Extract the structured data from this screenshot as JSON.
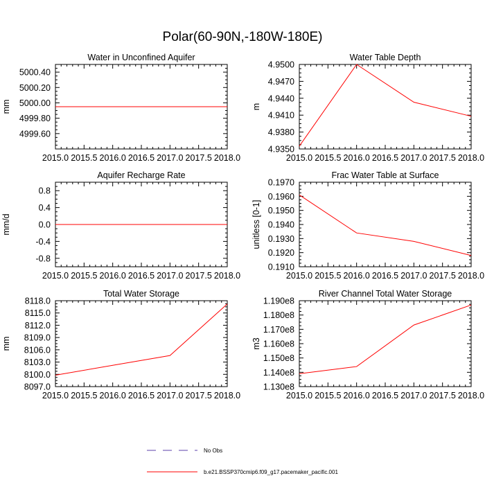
{
  "figure_title": "Polar(60-90N,-180W-180E)",
  "legend": {
    "items": [
      {
        "label": "No Obs",
        "color": "#5b3fa8",
        "style": "dashed"
      },
      {
        "label": "b.e21.BSSP370cmip6.f09_g17.pacemaker_pacific.001",
        "color": "#ff0000",
        "style": "solid"
      }
    ]
  },
  "chart_data": [
    {
      "type": "line",
      "title": "Water in Unconfined Aquifer",
      "ylabel": "mm",
      "xlabel": "",
      "xlim": [
        2015.0,
        2018.0
      ],
      "ylim": [
        4999.4,
        5000.5
      ],
      "yticks": [
        4999.6,
        4999.8,
        5000.0,
        5000.2,
        5000.4
      ],
      "ytick_labels": [
        "4999.60",
        "4999.80",
        "5000.00",
        "5000.20",
        "5000.40"
      ],
      "xticks": [
        2015.0,
        2015.5,
        2016.0,
        2016.5,
        2017.0,
        2017.5,
        2018.0
      ],
      "xtick_labels": [
        "2015.0",
        "2015.5",
        "2016.0",
        "2016.5",
        "2017.0",
        "2017.5",
        "2018.0"
      ],
      "series": [
        {
          "name": "b.e21.BSSP370cmip6.f09_g17.pacemaker_pacific.001",
          "x": [
            2015,
            2016,
            2017,
            2018
          ],
          "values": [
            4999.95,
            4999.95,
            4999.95,
            4999.95
          ]
        }
      ]
    },
    {
      "type": "line",
      "title": "Water Table Depth",
      "ylabel": "m",
      "xlabel": "",
      "xlim": [
        2015.0,
        2018.0
      ],
      "ylim": [
        4.935,
        4.95
      ],
      "yticks": [
        4.935,
        4.938,
        4.941,
        4.944,
        4.947,
        4.95
      ],
      "ytick_labels": [
        "4.9350",
        "4.9380",
        "4.9410",
        "4.9440",
        "4.9470",
        "4.9500"
      ],
      "xticks": [
        2015.0,
        2015.5,
        2016.0,
        2016.5,
        2017.0,
        2017.5,
        2018.0
      ],
      "xtick_labels": [
        "2015.0",
        "2015.5",
        "2016.0",
        "2016.5",
        "2017.0",
        "2017.5",
        "2018.0"
      ],
      "series": [
        {
          "name": "b.e21.BSSP370cmip6.f09_g17.pacemaker_pacific.001",
          "x": [
            2015,
            2016,
            2017,
            2018
          ],
          "values": [
            4.9355,
            4.95,
            4.9433,
            4.9408
          ]
        }
      ]
    },
    {
      "type": "line",
      "title": "Aquifer Recharge Rate",
      "ylabel": "mm/d",
      "xlabel": "",
      "xlim": [
        2015.0,
        2018.0
      ],
      "ylim": [
        -1.0,
        1.0
      ],
      "yticks": [
        -0.8,
        -0.4,
        0.0,
        0.4,
        0.8
      ],
      "ytick_labels": [
        "-0.8",
        "-0.4",
        "0.0",
        "0.4",
        "0.8"
      ],
      "xticks": [
        2015.0,
        2015.5,
        2016.0,
        2016.5,
        2017.0,
        2017.5,
        2018.0
      ],
      "xtick_labels": [
        "2015.0",
        "2015.5",
        "2016.0",
        "2016.5",
        "2017.0",
        "2017.5",
        "2018.0"
      ],
      "series": [
        {
          "name": "b.e21.BSSP370cmip6.f09_g17.pacemaker_pacific.001",
          "x": [
            2015,
            2016,
            2017,
            2018
          ],
          "values": [
            0.0,
            0.0,
            0.0,
            0.0
          ]
        }
      ]
    },
    {
      "type": "line",
      "title": "Frac Water Table at Surface",
      "ylabel": "unitless [0-1]",
      "xlabel": "",
      "xlim": [
        2015.0,
        2018.0
      ],
      "ylim": [
        0.191,
        0.197
      ],
      "yticks": [
        0.191,
        0.192,
        0.193,
        0.194,
        0.195,
        0.196,
        0.197
      ],
      "ytick_labels": [
        "0.1910",
        "0.1920",
        "0.1930",
        "0.1940",
        "0.1950",
        "0.1960",
        "0.1970"
      ],
      "xticks": [
        2015.0,
        2015.5,
        2016.0,
        2016.5,
        2017.0,
        2017.5,
        2018.0
      ],
      "xtick_labels": [
        "2015.0",
        "2015.5",
        "2016.0",
        "2016.5",
        "2017.0",
        "2017.5",
        "2018.0"
      ],
      "series": [
        {
          "name": "b.e21.BSSP370cmip6.f09_g17.pacemaker_pacific.001",
          "x": [
            2015,
            2016,
            2017,
            2018
          ],
          "values": [
            0.1961,
            0.1934,
            0.1928,
            0.1918
          ]
        }
      ]
    },
    {
      "type": "line",
      "title": "Total Water Storage",
      "ylabel": "mm",
      "xlabel": "",
      "xlim": [
        2015.0,
        2018.0
      ],
      "ylim": [
        8097.0,
        8118.0
      ],
      "yticks": [
        8097.0,
        8100.0,
        8103.0,
        8106.0,
        8109.0,
        8112.0,
        8115.0,
        8118.0
      ],
      "ytick_labels": [
        "8097.0",
        "8100.0",
        "8103.0",
        "8106.0",
        "8109.0",
        "8112.0",
        "8115.0",
        "8118.0"
      ],
      "xticks": [
        2015.0,
        2015.5,
        2016.0,
        2016.5,
        2017.0,
        2017.5,
        2018.0
      ],
      "xtick_labels": [
        "2015.0",
        "2015.5",
        "2016.0",
        "2016.5",
        "2017.0",
        "2017.5",
        "2018.0"
      ],
      "series": [
        {
          "name": "b.e21.BSSP370cmip6.f09_g17.pacemaker_pacific.001",
          "x": [
            2015,
            2016,
            2017,
            2018
          ],
          "values": [
            8099.8,
            8102.2,
            8104.6,
            8117.2
          ]
        }
      ]
    },
    {
      "type": "line",
      "title": "River Channel Total Water Storage",
      "ylabel": "m3",
      "xlabel": "",
      "xlim": [
        2015.0,
        2018.0
      ],
      "ylim": [
        113000000,
        119000000
      ],
      "yticks": [
        113000000,
        114000000,
        115000000,
        116000000,
        117000000,
        118000000,
        119000000
      ],
      "ytick_labels": [
        "1.130e8",
        "1.140e8",
        "1.150e8",
        "1.160e8",
        "1.170e8",
        "1.180e8",
        "1.190e8"
      ],
      "xticks": [
        2015.0,
        2015.5,
        2016.0,
        2016.5,
        2017.0,
        2017.5,
        2018.0
      ],
      "xtick_labels": [
        "2015.0",
        "2015.5",
        "2016.0",
        "2016.5",
        "2017.0",
        "2017.5",
        "2018.0"
      ],
      "series": [
        {
          "name": "b.e21.BSSP370cmip6.f09_g17.pacemaker_pacific.001",
          "x": [
            2015,
            2016,
            2017,
            2018
          ],
          "values": [
            113900000,
            114400000,
            117300000,
            118700000
          ]
        }
      ]
    }
  ]
}
